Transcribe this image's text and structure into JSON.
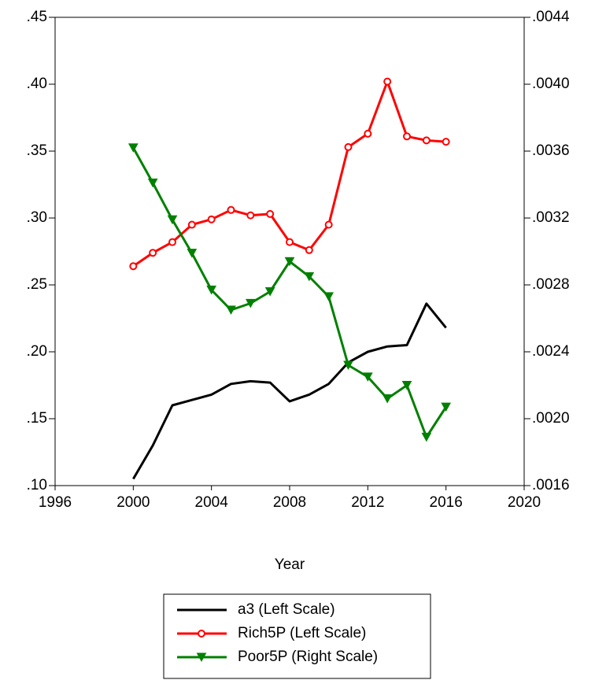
{
  "chart_data": {
    "type": "line",
    "x_label": "Year",
    "x": [
      2000,
      2001,
      2002,
      2003,
      2004,
      2005,
      2006,
      2007,
      2008,
      2009,
      2010,
      2011,
      2012,
      2013,
      2014,
      2015,
      2016
    ],
    "xlim": [
      1996,
      2020
    ],
    "xticks": [
      1996,
      2000,
      2004,
      2008,
      2012,
      2016,
      2020
    ],
    "ylim": [
      0.1,
      0.45
    ],
    "yticks": [
      {
        "value": 0.1,
        "label": ".10"
      },
      {
        "value": 0.15,
        "label": ".15"
      },
      {
        "value": 0.2,
        "label": ".20"
      },
      {
        "value": 0.25,
        "label": ".25"
      },
      {
        "value": 0.3,
        "label": ".30"
      },
      {
        "value": 0.35,
        "label": ".35"
      },
      {
        "value": 0.4,
        "label": ".40"
      },
      {
        "value": 0.45,
        "label": ".45"
      }
    ],
    "y2lim": [
      0.0016,
      0.0044
    ],
    "y2ticks": [
      {
        "value": 0.0016,
        "label": ".0016"
      },
      {
        "value": 0.002,
        "label": ".0020"
      },
      {
        "value": 0.0024,
        "label": ".0024"
      },
      {
        "value": 0.0028,
        "label": ".0028"
      },
      {
        "value": 0.0032,
        "label": ".0032"
      },
      {
        "value": 0.0036,
        "label": ".0036"
      },
      {
        "value": 0.004,
        "label": ".0040"
      },
      {
        "value": 0.0044,
        "label": ".0044"
      }
    ],
    "legend": "bottom",
    "series": [
      {
        "name": "a3 (Left Scale)",
        "color": "#000000",
        "marker": "none",
        "values": [
          0.105,
          0.13,
          0.16,
          0.164,
          0.168,
          0.176,
          0.178,
          0.177,
          0.163,
          0.168,
          0.176,
          0.192,
          0.2,
          0.204,
          0.205,
          0.236,
          0.218
        ]
      },
      {
        "name": "Rich5P (Left Scale)",
        "color": "#ff0000",
        "marker": "circle",
        "values": [
          0.264,
          0.274,
          0.282,
          0.295,
          0.299,
          0.306,
          0.302,
          0.303,
          0.282,
          0.276,
          0.295,
          0.353,
          0.363,
          0.402,
          0.361,
          0.358,
          0.357
        ]
      },
      {
        "name": "Poor5P (Right Scale)",
        "color": "#008000",
        "marker": "triangle-down",
        "axis": "y2",
        "values": [
          0.00362,
          0.00341,
          0.00319,
          0.00299,
          0.00277,
          0.00265,
          0.00269,
          0.00276,
          0.00294,
          0.00285,
          0.00273,
          0.00232,
          0.00225,
          0.00212,
          0.0022,
          0.00189,
          0.00207
        ]
      }
    ]
  }
}
